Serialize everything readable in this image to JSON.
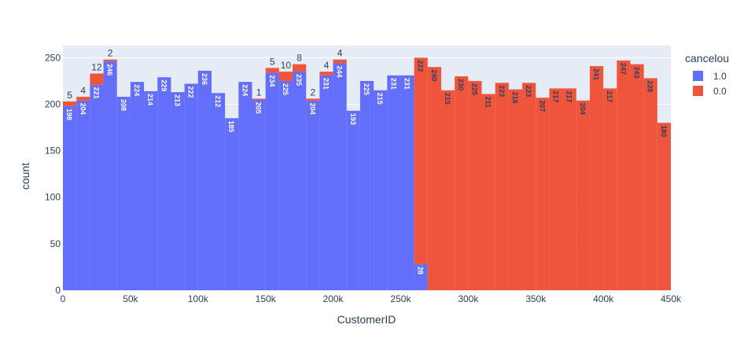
{
  "chart_data": {
    "type": "bar",
    "barmode": "stack",
    "xlabel": "CustomerID",
    "ylabel": "count",
    "xlim": [
      0,
      450000
    ],
    "ylim": [
      0,
      263
    ],
    "bin_size": 10000,
    "x_ticks": [
      {
        "value": 0,
        "label": "0"
      },
      {
        "value": 50000,
        "label": "50k"
      },
      {
        "value": 100000,
        "label": "100k"
      },
      {
        "value": 150000,
        "label": "150k"
      },
      {
        "value": 200000,
        "label": "200k"
      },
      {
        "value": 250000,
        "label": "250k"
      },
      {
        "value": 300000,
        "label": "300k"
      },
      {
        "value": 350000,
        "label": "350k"
      },
      {
        "value": 400000,
        "label": "400k"
      },
      {
        "value": 450000,
        "label": "450k"
      }
    ],
    "y_ticks": [
      {
        "value": 0,
        "label": "0"
      },
      {
        "value": 50,
        "label": "50"
      },
      {
        "value": 100,
        "label": "100"
      },
      {
        "value": 150,
        "label": "150"
      },
      {
        "value": 200,
        "label": "200"
      },
      {
        "value": 250,
        "label": "250"
      }
    ],
    "bin_starts": [
      0,
      10000,
      20000,
      30000,
      40000,
      50000,
      60000,
      70000,
      80000,
      90000,
      100000,
      110000,
      120000,
      130000,
      140000,
      150000,
      160000,
      170000,
      180000,
      190000,
      200000,
      210000,
      220000,
      230000,
      240000,
      250000,
      260000,
      270000,
      280000,
      290000,
      300000,
      310000,
      320000,
      330000,
      340000,
      350000,
      360000,
      370000,
      380000,
      390000,
      400000,
      410000,
      420000,
      430000,
      440000
    ],
    "legend": {
      "title": "cancelou",
      "position": "top-right"
    },
    "series": [
      {
        "name": "1.0",
        "color": "#636efa",
        "label_color": "#ffffff",
        "values": [
          198,
          204,
          221,
          246,
          208,
          224,
          214,
          229,
          213,
          222,
          236,
          212,
          185,
          224,
          205,
          234,
          225,
          235,
          204,
          231,
          244,
          193,
          225,
          215,
          231,
          231,
          28,
          null,
          null,
          null,
          null,
          null,
          null,
          null,
          null,
          null,
          null,
          null,
          null,
          null,
          null,
          null,
          null,
          null,
          null
        ]
      },
      {
        "name": "0.0",
        "color": "#ef553b",
        "label_color": "#2a3f5f",
        "values": [
          5,
          4,
          12,
          2,
          null,
          null,
          null,
          null,
          null,
          null,
          null,
          null,
          null,
          null,
          1,
          5,
          10,
          8,
          2,
          4,
          4,
          null,
          null,
          null,
          null,
          null,
          222,
          240,
          215,
          230,
          225,
          211,
          223,
          216,
          223,
          207,
          217,
          217,
          204,
          241,
          217,
          247,
          243,
          228,
          180
        ]
      }
    ],
    "grid": true
  }
}
